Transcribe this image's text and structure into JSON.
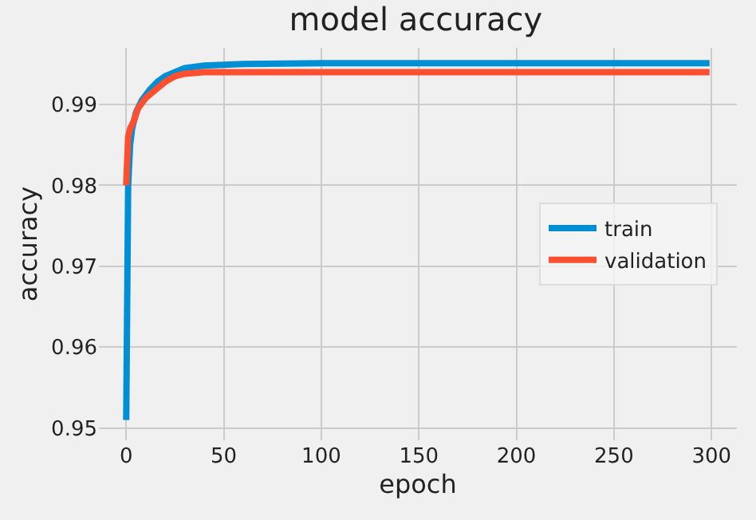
{
  "chart_data": {
    "type": "line",
    "title": "model accuracy",
    "xlabel": "epoch",
    "ylabel": "accuracy",
    "series": [
      {
        "name": "train",
        "color": "#008fd5",
        "x": [
          0,
          1,
          2,
          3,
          5,
          8,
          12,
          16,
          20,
          25,
          30,
          40,
          60,
          100,
          200,
          299
        ],
        "values": [
          0.951,
          0.98,
          0.985,
          0.987,
          0.989,
          0.9905,
          0.9918,
          0.9928,
          0.9935,
          0.994,
          0.9945,
          0.9948,
          0.995,
          0.9951,
          0.9951,
          0.9951
        ]
      },
      {
        "name": "validation",
        "color": "#fc4f30",
        "x": [
          0,
          1,
          2,
          4,
          6,
          10,
          15,
          20,
          25,
          30,
          40,
          60,
          100,
          200,
          299
        ],
        "values": [
          0.98,
          0.986,
          0.987,
          0.988,
          0.9895,
          0.9908,
          0.9918,
          0.9928,
          0.9935,
          0.9938,
          0.994,
          0.994,
          0.994,
          0.994,
          0.994
        ]
      }
    ],
    "xlim": [
      -14,
      313
    ],
    "ylim": [
      0.9485,
      0.997
    ],
    "xticks": [
      0,
      50,
      100,
      150,
      200,
      250,
      300
    ],
    "yticks": [
      0.95,
      0.96,
      0.97,
      0.98,
      0.99
    ],
    "grid": true,
    "legend": "right",
    "line_style": "solid",
    "marker": "none"
  }
}
